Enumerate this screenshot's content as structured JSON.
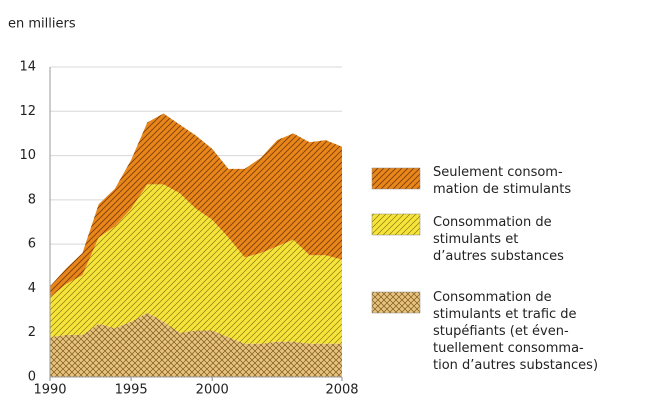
{
  "chart_data": {
    "type": "stacked_area",
    "y_label": "en milliers",
    "x": [
      1990,
      1991,
      1992,
      1993,
      1994,
      1995,
      1996,
      1997,
      1998,
      1999,
      2000,
      2001,
      2002,
      2003,
      2004,
      2005,
      2006,
      2007,
      2008
    ],
    "xlim": [
      1990,
      2008
    ],
    "xticks": [
      1990,
      1995,
      2000,
      2008
    ],
    "ylim": [
      0,
      14
    ],
    "yticks": [
      0,
      2,
      4,
      6,
      8,
      10,
      12,
      14
    ],
    "grid": true,
    "series": [
      {
        "name": "Consommation de\nstimulants et trafic de\nstupéfiants (et éven-\ntuellement consomma-\ntion d’autres substances)",
        "color": "#e9c27e",
        "values": [
          1.8,
          1.9,
          1.9,
          2.4,
          2.2,
          2.5,
          2.9,
          2.5,
          2.0,
          2.1,
          2.1,
          1.8,
          1.5,
          1.5,
          1.6,
          1.6,
          1.5,
          1.5,
          1.5
        ]
      },
      {
        "name": "Consommation de\nstimulants et\nd’autres substances",
        "color": "#f6e43a",
        "values": [
          1.8,
          2.3,
          2.7,
          3.9,
          4.6,
          5.1,
          5.8,
          6.2,
          6.3,
          5.5,
          5.0,
          4.5,
          3.9,
          4.1,
          4.3,
          4.6,
          4.0,
          4.0,
          3.8
        ]
      },
      {
        "name": "Seulement consom-\nmation de stimulants",
        "color": "#e8861a",
        "values": [
          0.5,
          0.7,
          1.0,
          1.5,
          1.7,
          2.2,
          2.8,
          3.2,
          3.1,
          3.3,
          3.2,
          3.1,
          4.0,
          4.3,
          4.8,
          4.8,
          5.1,
          5.2,
          5.1
        ]
      }
    ]
  }
}
